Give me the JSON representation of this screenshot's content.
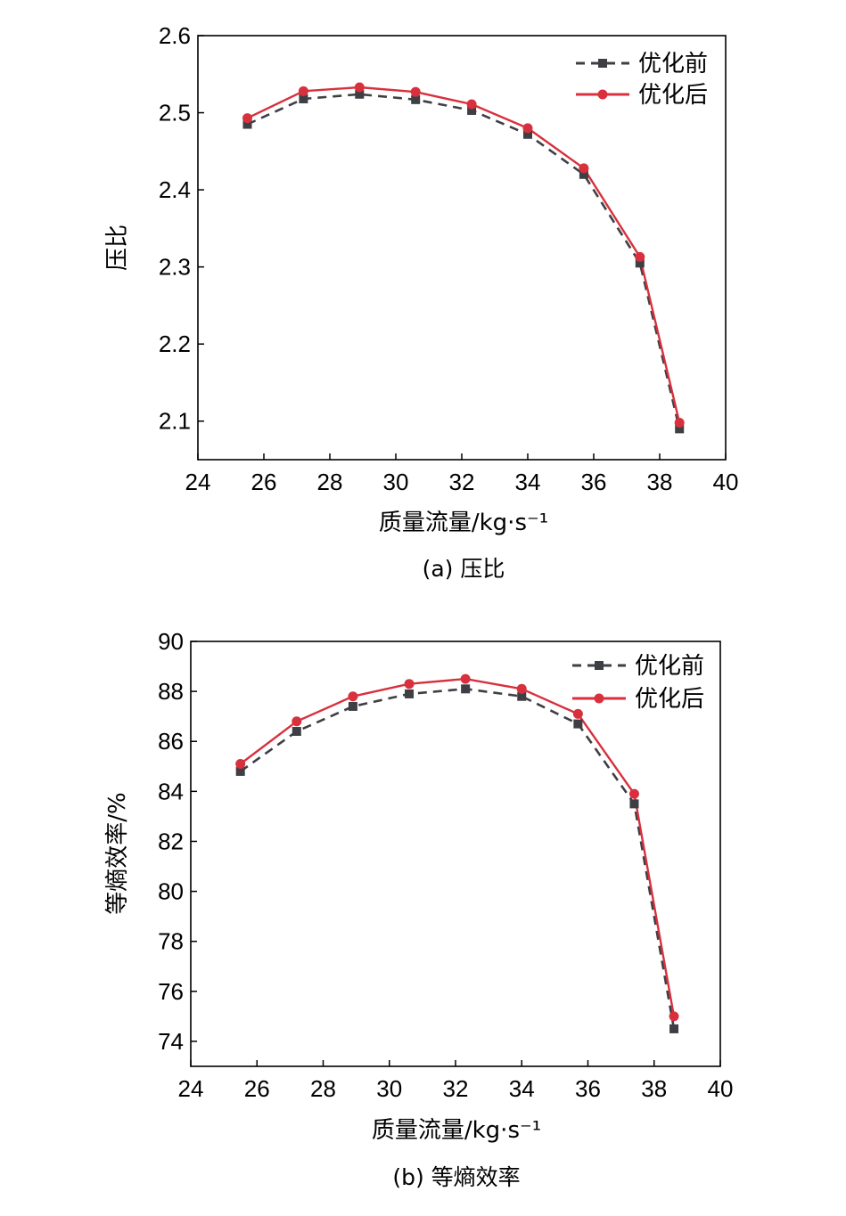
{
  "colors": {
    "before": "#3d3f44",
    "after": "#d8303d",
    "axis": "#000000"
  },
  "chart_data": [
    {
      "type": "line",
      "caption": "(a) 压比",
      "xlabel": "质量流量/kg·s⁻¹",
      "ylabel": "压比",
      "xlim": [
        24,
        40
      ],
      "ylim": [
        2.05,
        2.6
      ],
      "xticks": [
        "24",
        "26",
        "28",
        "30",
        "32",
        "34",
        "36",
        "38",
        "40"
      ],
      "yticks": [
        "2.1",
        "2.2",
        "2.3",
        "2.4",
        "2.5",
        "2.6"
      ],
      "ytick_values": [
        2.1,
        2.2,
        2.3,
        2.4,
        2.5,
        2.6
      ],
      "grid": false,
      "legend_position": "top-right",
      "series": [
        {
          "name": "优化前",
          "marker": "square",
          "dash": true,
          "x": [
            25.5,
            27.2,
            28.9,
            30.6,
            32.3,
            34.0,
            35.7,
            37.4,
            38.6
          ],
          "y": [
            2.485,
            2.518,
            2.524,
            2.517,
            2.503,
            2.472,
            2.42,
            2.305,
            2.09
          ]
        },
        {
          "name": "优化后",
          "marker": "circle",
          "dash": false,
          "x": [
            25.5,
            27.2,
            28.9,
            30.6,
            32.3,
            34.0,
            35.7,
            37.4,
            38.6
          ],
          "y": [
            2.493,
            2.528,
            2.533,
            2.527,
            2.511,
            2.48,
            2.428,
            2.313,
            2.098
          ]
        }
      ]
    },
    {
      "type": "line",
      "caption": "(b) 等熵效率",
      "xlabel": "质量流量/kg·s⁻¹",
      "ylabel": "等熵效率/%",
      "xlim": [
        24,
        40
      ],
      "ylim": [
        73,
        90
      ],
      "xticks": [
        "24",
        "26",
        "28",
        "30",
        "32",
        "34",
        "36",
        "38",
        "40"
      ],
      "yticks": [
        "74",
        "76",
        "78",
        "80",
        "82",
        "84",
        "86",
        "88",
        "90"
      ],
      "ytick_values": [
        74,
        76,
        78,
        80,
        82,
        84,
        86,
        88,
        90
      ],
      "grid": false,
      "legend_position": "top-right",
      "series": [
        {
          "name": "优化前",
          "marker": "square",
          "dash": true,
          "x": [
            25.5,
            27.2,
            28.9,
            30.6,
            32.3,
            34.0,
            35.7,
            37.4,
            38.6
          ],
          "y": [
            84.8,
            86.4,
            87.4,
            87.9,
            88.1,
            87.8,
            86.7,
            83.5,
            74.5
          ]
        },
        {
          "name": "优化后",
          "marker": "circle",
          "dash": false,
          "x": [
            25.5,
            27.2,
            28.9,
            30.6,
            32.3,
            34.0,
            35.7,
            37.4,
            38.6
          ],
          "y": [
            85.1,
            86.8,
            87.8,
            88.3,
            88.5,
            88.1,
            87.1,
            83.9,
            75.0
          ]
        }
      ]
    }
  ]
}
